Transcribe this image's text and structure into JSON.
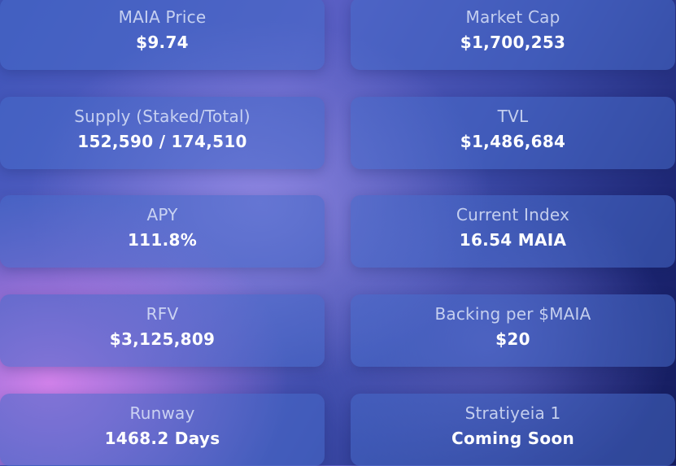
{
  "stats": [
    {
      "label": "MAIA Price",
      "value": "$9.74"
    },
    {
      "label": "Market Cap",
      "value": "$1,700,253"
    },
    {
      "label": "Supply (Staked/Total)",
      "value": "152,590 / 174,510"
    },
    {
      "label": "TVL",
      "value": "$1,486,684"
    },
    {
      "label": "APY",
      "value": "111.8%"
    },
    {
      "label": "Current Index",
      "value": "16.54 MAIA"
    },
    {
      "label": "RFV",
      "value": "$3,125,809"
    },
    {
      "label": "Backing per $MAIA",
      "value": "$20"
    },
    {
      "label": "Runway",
      "value": "1468.2 Days"
    },
    {
      "label": "Stratiyeia 1",
      "value": "Coming Soon"
    }
  ]
}
